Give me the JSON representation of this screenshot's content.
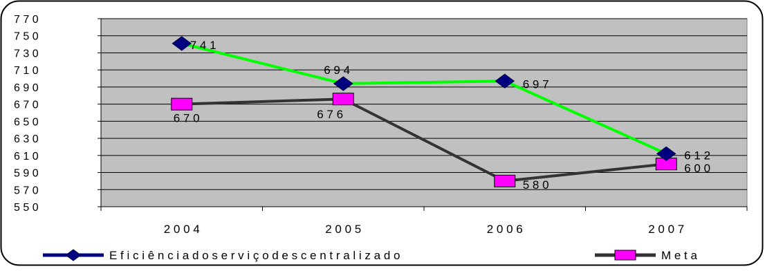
{
  "chart_data": {
    "type": "line",
    "title": "",
    "xlabel": "",
    "ylabel": "",
    "categories": [
      "2 0 0 4",
      "2 0 0 5",
      "2 0 0 6",
      "2 0 0 7"
    ],
    "ylim": [
      550,
      770
    ],
    "yticks": [
      550,
      570,
      590,
      610,
      630,
      650,
      670,
      690,
      710,
      730,
      750,
      770
    ],
    "ytick_labels": [
      "5 5 0",
      "5 7 0",
      "5 9 0",
      "6 1 0",
      "6 3 0",
      "6 5 0",
      "6 7 0",
      "6 9 0",
      "7 1 0",
      "7 3 0",
      "7 5 0",
      "7 7 0"
    ],
    "grid": true,
    "legend_position": "bottom",
    "plot_background": "#C0C0C0",
    "series": [
      {
        "name": "E f i c i ê n c i a   d o   s e r v i ç o   d e s c e n t r a l i z a d o",
        "values": [
          741,
          694,
          697,
          612
        ],
        "data_labels": [
          "7 4 1",
          "6 9 4",
          "6 9 7",
          "6 1 2"
        ],
        "line_color": "#00FF00",
        "marker": "diamond",
        "marker_color": "#000080",
        "legend_line_color": "#000080"
      },
      {
        "name": "M e t a",
        "values": [
          670,
          676,
          580,
          600
        ],
        "data_labels": [
          "6 7 0",
          "6 7 6",
          "5 8 0",
          "6 0 0"
        ],
        "line_color": "#333333",
        "marker": "square",
        "marker_color": "#FF00FF",
        "legend_line_color": "#333333"
      }
    ]
  }
}
